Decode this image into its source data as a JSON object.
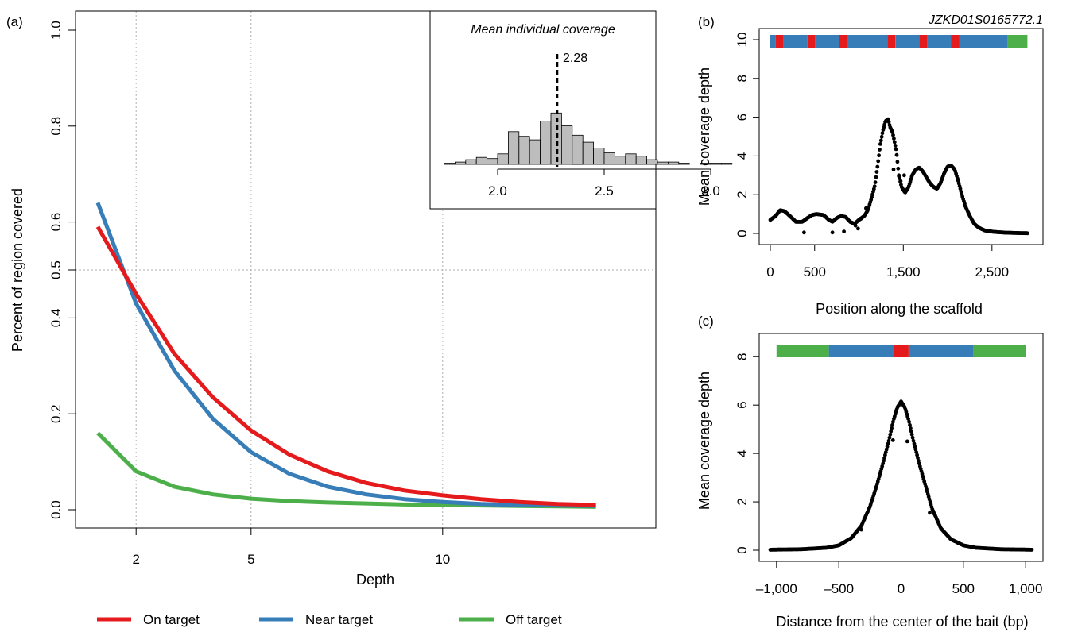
{
  "panels": {
    "a": {
      "label": "(a)"
    },
    "b": {
      "label": "(b)",
      "scaffold_name": "JZKD01S0165772.1"
    },
    "c": {
      "label": "(c)"
    }
  },
  "legend": [
    {
      "label": "On target",
      "color": "#e41a1c"
    },
    {
      "label": "Near target",
      "color": "#377eb8"
    },
    {
      "label": "Off target",
      "color": "#4daf4a"
    }
  ],
  "inset": {
    "title": "Mean individual coverage",
    "mean_value": 2.28,
    "mean_label": "2.28"
  },
  "chart_data": [
    {
      "panel": "a",
      "type": "line",
      "xlabel": "Depth",
      "ylabel": "Percent of region covered",
      "x_tick_labels": [
        "2",
        "5",
        "10"
      ],
      "y_tick_labels": [
        "0.0",
        "0.2",
        "0.4",
        "0.5",
        "0.6",
        "0.8",
        "1.0"
      ],
      "ylim": [
        0,
        1.05
      ],
      "grid_x": [
        2,
        5,
        10
      ],
      "grid_y": [
        0.5
      ],
      "x": [
        1,
        2,
        3,
        4,
        5,
        6,
        7,
        8,
        9,
        10,
        11,
        12,
        13,
        14
      ],
      "series": [
        {
          "name": "On target",
          "color": "#e41a1c",
          "values": [
            0.59,
            0.45,
            0.325,
            0.235,
            0.165,
            0.115,
            0.08,
            0.056,
            0.04,
            0.03,
            0.022,
            0.016,
            0.012,
            0.01
          ]
        },
        {
          "name": "Near target",
          "color": "#377eb8",
          "values": [
            0.64,
            0.43,
            0.29,
            0.19,
            0.12,
            0.075,
            0.048,
            0.032,
            0.022,
            0.016,
            0.012,
            0.01,
            0.009,
            0.008
          ]
        },
        {
          "name": "Off target",
          "color": "#4daf4a",
          "values": [
            0.16,
            0.08,
            0.048,
            0.032,
            0.023,
            0.018,
            0.015,
            0.013,
            0.011,
            0.01,
            0.009,
            0.008,
            0.007,
            0.006
          ]
        }
      ]
    },
    {
      "panel": "a-inset",
      "type": "bar",
      "title": "Mean individual coverage",
      "x_tick_labels": [
        "2.0",
        "2.5",
        "3.0"
      ],
      "bin_start": 1.75,
      "bin_width": 0.05,
      "counts": [
        1,
        2,
        4,
        6,
        5,
        9,
        28,
        24,
        21,
        37,
        44,
        33,
        25,
        19,
        14,
        10,
        7,
        9,
        7,
        4,
        2,
        2,
        1,
        0,
        1,
        1,
        1
      ]
    },
    {
      "panel": "b",
      "type": "scatter",
      "xlabel": "Position along the scaffold",
      "ylabel": "Mean coverage depth",
      "x_tick_labels": [
        "0",
        "500",
        "1,500",
        "2,500"
      ],
      "y_tick_labels": [
        "0",
        "2",
        "4",
        "6",
        "8",
        "10"
      ],
      "xlim": [
        0,
        2950
      ],
      "ylim": [
        0,
        10
      ],
      "profile": [
        [
          0,
          0.7
        ],
        [
          60,
          0.9
        ],
        [
          110,
          1.2
        ],
        [
          160,
          1.15
        ],
        [
          220,
          0.9
        ],
        [
          290,
          0.6
        ],
        [
          360,
          0.6
        ],
        [
          420,
          0.8
        ],
        [
          470,
          0.95
        ],
        [
          520,
          1.0
        ],
        [
          600,
          0.95
        ],
        [
          660,
          0.7
        ],
        [
          700,
          0.6
        ],
        [
          750,
          0.8
        ],
        [
          800,
          0.9
        ],
        [
          850,
          0.85
        ],
        [
          900,
          0.6
        ],
        [
          950,
          0.5
        ],
        [
          1000,
          0.7
        ],
        [
          1060,
          0.9
        ],
        [
          1100,
          1.2
        ],
        [
          1140,
          1.8
        ],
        [
          1180,
          2.5
        ],
        [
          1210,
          3.5
        ],
        [
          1240,
          4.6
        ],
        [
          1270,
          5.3
        ],
        [
          1300,
          5.8
        ],
        [
          1330,
          5.9
        ],
        [
          1350,
          5.5
        ],
        [
          1380,
          5.2
        ],
        [
          1420,
          4.3
        ],
        [
          1450,
          3.0
        ],
        [
          1480,
          2.4
        ],
        [
          1520,
          2.1
        ],
        [
          1560,
          2.4
        ],
        [
          1600,
          3.0
        ],
        [
          1640,
          3.3
        ],
        [
          1680,
          3.4
        ],
        [
          1720,
          3.2
        ],
        [
          1760,
          2.9
        ],
        [
          1800,
          2.6
        ],
        [
          1840,
          2.4
        ],
        [
          1880,
          2.3
        ],
        [
          1920,
          2.6
        ],
        [
          1960,
          3.1
        ],
        [
          2000,
          3.45
        ],
        [
          2040,
          3.5
        ],
        [
          2080,
          3.3
        ],
        [
          2120,
          2.7
        ],
        [
          2160,
          2.0
        ],
        [
          2200,
          1.4
        ],
        [
          2250,
          0.9
        ],
        [
          2300,
          0.5
        ],
        [
          2350,
          0.3
        ],
        [
          2420,
          0.15
        ],
        [
          2520,
          0.08
        ],
        [
          2650,
          0.04
        ],
        [
          2800,
          0.02
        ],
        [
          2900,
          0.01
        ]
      ],
      "outliers": [
        [
          380,
          0.05
        ],
        [
          700,
          0.05
        ],
        [
          830,
          0.1
        ],
        [
          960,
          0.4
        ],
        [
          990,
          0.25
        ],
        [
          1020,
          0.75
        ],
        [
          1080,
          1.3
        ],
        [
          1390,
          3.3
        ],
        [
          1450,
          2.95
        ],
        [
          1470,
          2.7
        ],
        [
          1510,
          3.0
        ]
      ],
      "bar": [
        {
          "from": 0,
          "to": 60,
          "color": "#377eb8"
        },
        {
          "from": 60,
          "to": 150,
          "color": "#e41a1c"
        },
        {
          "from": 150,
          "to": 420,
          "color": "#377eb8"
        },
        {
          "from": 420,
          "to": 510,
          "color": "#e41a1c"
        },
        {
          "from": 510,
          "to": 780,
          "color": "#377eb8"
        },
        {
          "from": 780,
          "to": 870,
          "color": "#e41a1c"
        },
        {
          "from": 870,
          "to": 1320,
          "color": "#377eb8"
        },
        {
          "from": 1320,
          "to": 1410,
          "color": "#e41a1c"
        },
        {
          "from": 1410,
          "to": 1680,
          "color": "#377eb8"
        },
        {
          "from": 1680,
          "to": 1770,
          "color": "#e41a1c"
        },
        {
          "from": 1770,
          "to": 2040,
          "color": "#377eb8"
        },
        {
          "from": 2040,
          "to": 2130,
          "color": "#e41a1c"
        },
        {
          "from": 2130,
          "to": 2680,
          "color": "#377eb8"
        },
        {
          "from": 2680,
          "to": 2900,
          "color": "#4daf4a"
        }
      ]
    },
    {
      "panel": "c",
      "type": "scatter",
      "xlabel": "Distance from the center of the bait (bp)",
      "ylabel": "Mean coverage depth",
      "x_tick_labels": [
        "–1,000",
        "–500",
        "0",
        "500",
        "1,000"
      ],
      "y_tick_labels": [
        "0",
        "2",
        "4",
        "6",
        "8"
      ],
      "xlim": [
        -1050,
        1050
      ],
      "ylim": [
        0,
        8.5
      ],
      "profile": [
        [
          -1050,
          0.02
        ],
        [
          -800,
          0.04
        ],
        [
          -600,
          0.1
        ],
        [
          -500,
          0.2
        ],
        [
          -400,
          0.5
        ],
        [
          -320,
          1.0
        ],
        [
          -250,
          1.8
        ],
        [
          -200,
          2.6
        ],
        [
          -150,
          3.5
        ],
        [
          -100,
          4.5
        ],
        [
          -60,
          5.4
        ],
        [
          -30,
          5.9
        ],
        [
          0,
          6.15
        ],
        [
          30,
          5.9
        ],
        [
          60,
          5.4
        ],
        [
          100,
          4.5
        ],
        [
          150,
          3.5
        ],
        [
          200,
          2.6
        ],
        [
          250,
          1.7
        ],
        [
          320,
          0.9
        ],
        [
          400,
          0.45
        ],
        [
          500,
          0.2
        ],
        [
          600,
          0.1
        ],
        [
          800,
          0.04
        ],
        [
          1050,
          0.02
        ]
      ],
      "outliers": [
        [
          -320,
          0.85
        ],
        [
          -65,
          4.55
        ],
        [
          50,
          4.5
        ],
        [
          230,
          1.55
        ]
      ],
      "bar": [
        {
          "from": -1000,
          "to": -580,
          "color": "#4daf4a"
        },
        {
          "from": -580,
          "to": -60,
          "color": "#377eb8"
        },
        {
          "from": -60,
          "to": 60,
          "color": "#e41a1c"
        },
        {
          "from": 60,
          "to": 580,
          "color": "#377eb8"
        },
        {
          "from": 580,
          "to": 1000,
          "color": "#4daf4a"
        }
      ]
    }
  ]
}
